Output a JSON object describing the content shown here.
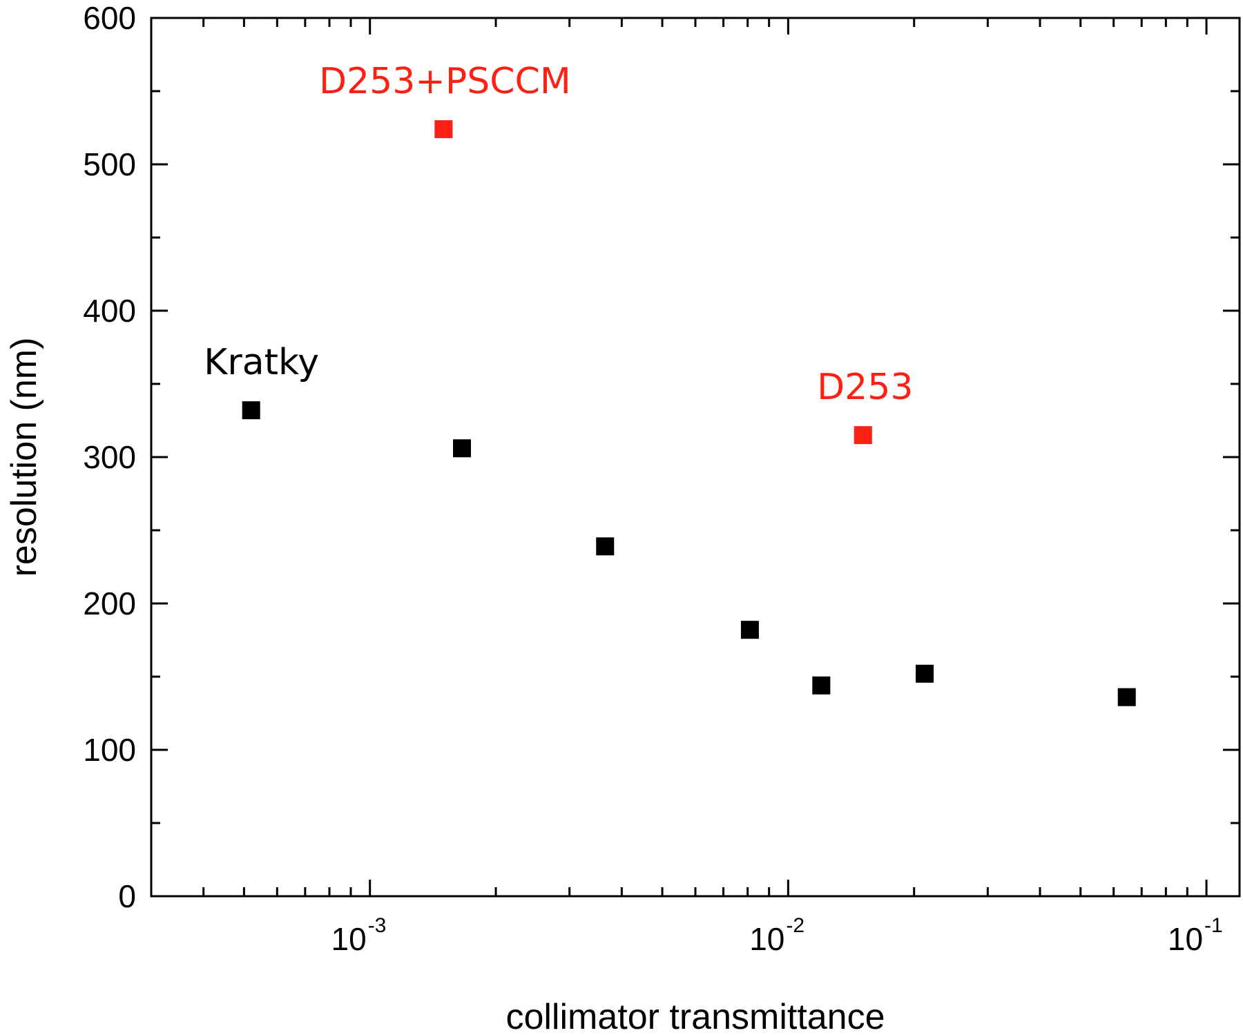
{
  "chart_data": {
    "type": "scatter",
    "xlabel": "collimator transmittance",
    "ylabel": "resolution (nm)",
    "xscale": "log",
    "xlim": [
      0.0003,
      0.12
    ],
    "ylim": [
      0,
      600
    ],
    "y_ticks": [
      "0",
      "100",
      "200",
      "300",
      "400",
      "500",
      "600"
    ],
    "x_ticks": [
      {
        "base": "10",
        "exp": "-3",
        "value": 0.001
      },
      {
        "base": "10",
        "exp": "-2",
        "value": 0.01
      },
      {
        "base": "10",
        "exp": "-1",
        "value": 0.1
      }
    ],
    "grid": false,
    "series": [
      {
        "color": "#000000",
        "points": [
          {
            "x": 0.00052,
            "y": 332
          },
          {
            "x": 0.00166,
            "y": 306
          },
          {
            "x": 0.00365,
            "y": 239
          },
          {
            "x": 0.0081,
            "y": 182
          },
          {
            "x": 0.012,
            "y": 144
          },
          {
            "x": 0.0212,
            "y": 152
          },
          {
            "x": 0.0645,
            "y": 136
          }
        ]
      },
      {
        "color": "#ff2015",
        "points": [
          {
            "x": 0.0015,
            "y": 524
          },
          {
            "x": 0.0151,
            "y": 315
          }
        ]
      }
    ],
    "annotations": [
      {
        "text": "Kratky",
        "color": "#000000",
        "x": 0.00052,
        "y": 332
      },
      {
        "text": "D253+PSCCM",
        "color": "#ff2015",
        "x": 0.0015,
        "y": 524
      },
      {
        "text": "D253",
        "color": "#ff2015",
        "x": 0.0151,
        "y": 315
      }
    ]
  }
}
